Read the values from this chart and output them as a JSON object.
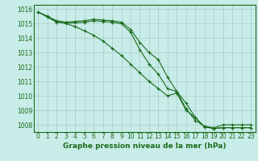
{
  "xlabel": "Graphe pression niveau de la mer (hPa)",
  "hours": [
    0,
    1,
    2,
    3,
    4,
    5,
    6,
    7,
    8,
    9,
    10,
    11,
    12,
    13,
    14,
    15,
    16,
    17,
    18,
    19,
    20,
    21,
    22,
    23
  ],
  "line1": [
    1015.8,
    1015.5,
    1015.2,
    1015.1,
    1015.15,
    1015.2,
    1015.3,
    1015.25,
    1015.2,
    1015.1,
    1014.6,
    1013.7,
    1013.0,
    1012.5,
    1011.3,
    1010.3,
    1009.1,
    1008.3,
    1007.9,
    1007.8,
    1008.0,
    1008.0,
    1008.0,
    1008.0
  ],
  "line2": [
    1015.8,
    1015.45,
    1015.1,
    1015.05,
    1015.05,
    1015.1,
    1015.2,
    1015.15,
    1015.1,
    1015.0,
    1014.4,
    1013.2,
    1012.2,
    1011.5,
    1010.5,
    1010.3,
    1009.5,
    1008.5,
    1007.85,
    1007.75,
    1007.8,
    1007.8,
    1007.8,
    1007.8
  ],
  "line3": [
    1015.8,
    1015.5,
    1015.15,
    1015.0,
    1014.8,
    1014.5,
    1014.2,
    1013.8,
    1013.3,
    1012.8,
    1012.2,
    1011.6,
    1011.0,
    1010.5,
    1010.0,
    1010.2,
    1009.0,
    1008.5,
    1007.85,
    1007.75,
    1007.8,
    1007.8,
    1007.8,
    1007.8
  ],
  "line_color": "#1a6b1a",
  "bg_color": "#c8ece8",
  "grid_color": "#a8ccc8",
  "ylim": [
    1007.5,
    1016.3
  ],
  "yticks": [
    1008,
    1009,
    1010,
    1011,
    1012,
    1013,
    1014,
    1015,
    1016
  ],
  "marker": "+",
  "marker_size": 3,
  "linewidth": 0.8,
  "tick_fontsize": 5.5
}
